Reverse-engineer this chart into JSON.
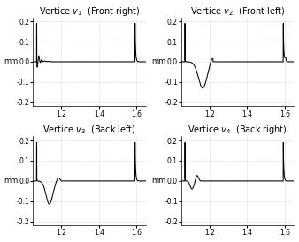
{
  "titles": [
    "Vertice $v_1$  (Front right)",
    "Vertice $v_2$  (Front left)",
    "Vertice $v_3$  (Back left)",
    "Vertice $v_4$  (Back right)"
  ],
  "ylabel": "mm",
  "xlim": [
    1.05,
    1.65
  ],
  "ylim": [
    -0.22,
    0.22
  ],
  "xticks": [
    1.2,
    1.4,
    1.6
  ],
  "yticks": [
    -0.2,
    -0.1,
    0.0,
    0.1,
    0.2
  ],
  "grid_color": "#b0b0b0",
  "line_color": "#000000",
  "bg_color": "#ffffff",
  "title_fontsize": 7.0,
  "tick_fontsize": 5.5,
  "label_fontsize": 6.0
}
